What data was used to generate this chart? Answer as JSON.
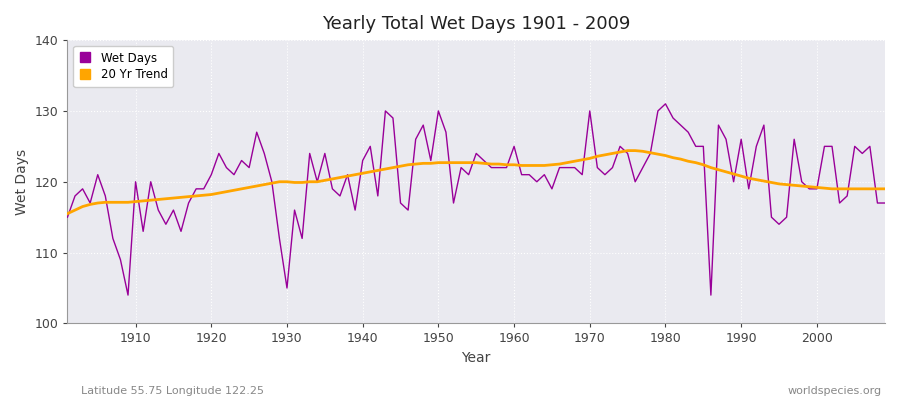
{
  "title": "Yearly Total Wet Days 1901 - 2009",
  "xlabel": "Year",
  "ylabel": "Wet Days",
  "lat_lon_label": "Latitude 55.75 Longitude 122.25",
  "watermark": "worldspecies.org",
  "ylim": [
    100,
    140
  ],
  "xlim": [
    1901,
    2009
  ],
  "yticks": [
    100,
    110,
    120,
    130,
    140
  ],
  "xticks": [
    1910,
    1920,
    1930,
    1940,
    1950,
    1960,
    1970,
    1980,
    1990,
    2000
  ],
  "wet_days_color": "#990099",
  "trend_color": "#FFA500",
  "fig_bg_color": "#FFFFFF",
  "plot_bg_color": "#EAEAF0",
  "wet_days": {
    "years": [
      1901,
      1902,
      1903,
      1904,
      1905,
      1906,
      1907,
      1908,
      1909,
      1910,
      1911,
      1912,
      1913,
      1914,
      1915,
      1916,
      1917,
      1918,
      1919,
      1920,
      1921,
      1922,
      1923,
      1924,
      1925,
      1926,
      1927,
      1928,
      1929,
      1930,
      1931,
      1932,
      1933,
      1934,
      1935,
      1936,
      1937,
      1938,
      1939,
      1940,
      1941,
      1942,
      1943,
      1944,
      1945,
      1946,
      1947,
      1948,
      1949,
      1950,
      1951,
      1952,
      1953,
      1954,
      1955,
      1956,
      1957,
      1958,
      1959,
      1960,
      1961,
      1962,
      1963,
      1964,
      1965,
      1966,
      1967,
      1968,
      1969,
      1970,
      1971,
      1972,
      1973,
      1974,
      1975,
      1976,
      1977,
      1978,
      1979,
      1980,
      1981,
      1982,
      1983,
      1984,
      1985,
      1986,
      1987,
      1988,
      1989,
      1990,
      1991,
      1992,
      1993,
      1994,
      1995,
      1996,
      1997,
      1998,
      1999,
      2000,
      2001,
      2002,
      2003,
      2004,
      2005,
      2006,
      2007,
      2008,
      2009
    ],
    "values": [
      115,
      118,
      119,
      117,
      121,
      118,
      112,
      109,
      104,
      120,
      113,
      120,
      116,
      114,
      116,
      113,
      117,
      119,
      119,
      121,
      124,
      122,
      121,
      123,
      122,
      127,
      124,
      120,
      112,
      105,
      116,
      112,
      124,
      120,
      124,
      119,
      118,
      121,
      116,
      123,
      125,
      118,
      130,
      129,
      117,
      116,
      126,
      128,
      123,
      130,
      127,
      117,
      122,
      121,
      124,
      123,
      122,
      122,
      122,
      125,
      121,
      121,
      120,
      121,
      119,
      122,
      122,
      122,
      121,
      130,
      122,
      121,
      122,
      125,
      124,
      120,
      122,
      124,
      130,
      131,
      129,
      128,
      127,
      125,
      125,
      104,
      128,
      126,
      120,
      126,
      119,
      125,
      128,
      115,
      114,
      115,
      126,
      120,
      119,
      119,
      125,
      125,
      117,
      118,
      125,
      124,
      125,
      117,
      117
    ]
  },
  "trend_20yr": {
    "years": [
      1901,
      1902,
      1903,
      1904,
      1905,
      1906,
      1907,
      1908,
      1909,
      1910,
      1911,
      1912,
      1913,
      1914,
      1915,
      1916,
      1917,
      1918,
      1919,
      1920,
      1921,
      1922,
      1923,
      1924,
      1925,
      1926,
      1927,
      1928,
      1929,
      1930,
      1931,
      1932,
      1933,
      1934,
      1935,
      1936,
      1937,
      1938,
      1939,
      1940,
      1941,
      1942,
      1943,
      1944,
      1945,
      1946,
      1947,
      1948,
      1949,
      1950,
      1951,
      1952,
      1953,
      1954,
      1955,
      1956,
      1957,
      1958,
      1959,
      1960,
      1961,
      1962,
      1963,
      1964,
      1965,
      1966,
      1967,
      1968,
      1969,
      1970,
      1971,
      1972,
      1973,
      1974,
      1975,
      1976,
      1977,
      1978,
      1979,
      1980,
      1981,
      1982,
      1983,
      1984,
      1985,
      1986,
      1987,
      1988,
      1989,
      1990,
      1991,
      1992,
      1993,
      1994,
      1995,
      1996,
      1997,
      1998,
      1999,
      2000,
      2001,
      2002,
      2003,
      2004,
      2005,
      2006,
      2007,
      2008,
      2009
    ],
    "values": [
      115.5,
      116.0,
      116.5,
      116.8,
      117.0,
      117.1,
      117.1,
      117.1,
      117.1,
      117.2,
      117.3,
      117.4,
      117.5,
      117.6,
      117.7,
      117.8,
      117.9,
      118.0,
      118.1,
      118.2,
      118.4,
      118.6,
      118.8,
      119.0,
      119.2,
      119.4,
      119.6,
      119.8,
      120.0,
      120.0,
      119.9,
      119.9,
      120.0,
      120.0,
      120.2,
      120.4,
      120.6,
      120.8,
      121.0,
      121.2,
      121.4,
      121.6,
      121.8,
      122.0,
      122.2,
      122.4,
      122.5,
      122.6,
      122.6,
      122.7,
      122.7,
      122.7,
      122.7,
      122.7,
      122.7,
      122.6,
      122.5,
      122.5,
      122.4,
      122.4,
      122.3,
      122.3,
      122.3,
      122.3,
      122.4,
      122.5,
      122.7,
      122.9,
      123.1,
      123.3,
      123.6,
      123.8,
      124.0,
      124.2,
      124.4,
      124.4,
      124.3,
      124.1,
      123.9,
      123.7,
      123.4,
      123.2,
      122.9,
      122.7,
      122.4,
      122.0,
      121.7,
      121.4,
      121.1,
      120.8,
      120.5,
      120.3,
      120.1,
      119.9,
      119.7,
      119.6,
      119.5,
      119.4,
      119.3,
      119.2,
      119.1,
      119.0,
      119.0,
      119.0,
      119.0,
      119.0,
      119.0,
      119.0,
      119.0
    ]
  }
}
